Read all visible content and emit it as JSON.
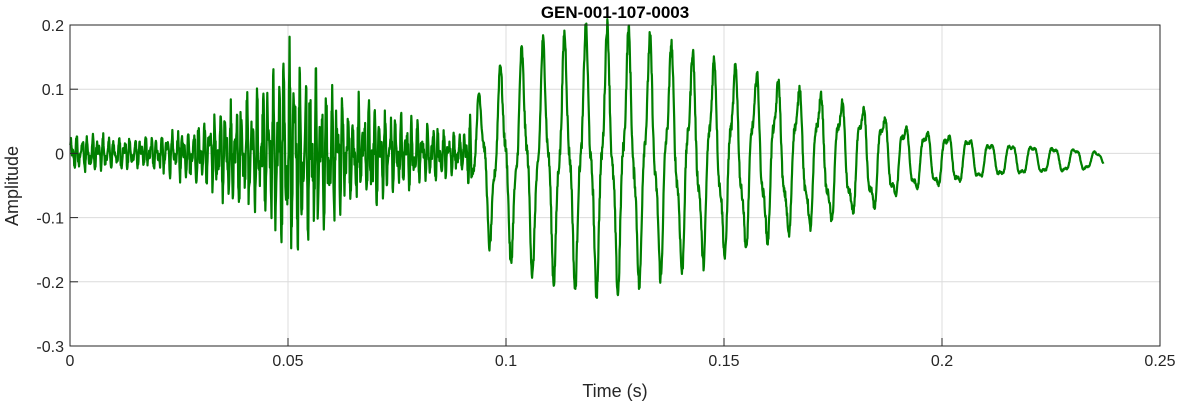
{
  "colors": {
    "trace": "#007f00",
    "grid": "#dcdcdc",
    "axes": "#262626",
    "background": "#ffffff"
  },
  "chart_data": {
    "type": "line",
    "title": "GEN-001-107-0003",
    "xlabel": "Time (s)",
    "ylabel": "Amplitude",
    "xlim": [
      0,
      0.25
    ],
    "ylim": [
      -0.3,
      0.2
    ],
    "xticks": [
      0,
      0.05,
      0.1,
      0.15,
      0.2,
      0.25
    ],
    "xtick_labels": [
      "0",
      "0.05",
      "0.1",
      "0.15",
      "0.2",
      "0.25"
    ],
    "yticks": [
      -0.3,
      -0.2,
      -0.1,
      0,
      0.1,
      0.2
    ],
    "ytick_labels": [
      "-0.3",
      "-0.2",
      "-0.1",
      "0",
      "0.1",
      "0.2"
    ],
    "grid": true,
    "series": [
      {
        "color": "#007f00",
        "x": [
          0,
          0.005,
          0.01,
          0.015,
          0.02,
          0.025,
          0.03,
          0.035,
          0.04,
          0.045,
          0.047,
          0.05,
          0.052,
          0.055,
          0.058,
          0.06,
          0.065,
          0.07,
          0.075,
          0.08,
          0.085,
          0.09,
          0.093,
          0.096,
          0.1,
          0.105,
          0.11,
          0.115,
          0.12,
          0.125,
          0.13,
          0.135,
          0.14,
          0.145,
          0.15,
          0.155,
          0.16,
          0.165,
          0.17,
          0.175,
          0.18,
          0.185,
          0.19,
          0.195,
          0.2,
          0.205,
          0.21,
          0.215,
          0.22,
          0.225,
          0.23,
          0.235,
          0.237
        ],
        "envelope": [
          0.03,
          0.03,
          0.028,
          0.025,
          0.03,
          0.04,
          0.05,
          0.07,
          0.09,
          0.11,
          0.13,
          0.17,
          0.16,
          0.14,
          0.12,
          0.1,
          0.09,
          0.08,
          0.06,
          0.05,
          0.04,
          0.03,
          0.09,
          0.13,
          0.15,
          0.17,
          0.18,
          0.19,
          0.2,
          0.2,
          0.19,
          0.18,
          0.17,
          0.16,
          0.15,
          0.14,
          0.13,
          0.12,
          0.11,
          0.1,
          0.09,
          0.08,
          0.06,
          0.05,
          0.045,
          0.04,
          0.03,
          0.028,
          0.025,
          0.022,
          0.02,
          0.015,
          0.01
        ]
      }
    ]
  }
}
